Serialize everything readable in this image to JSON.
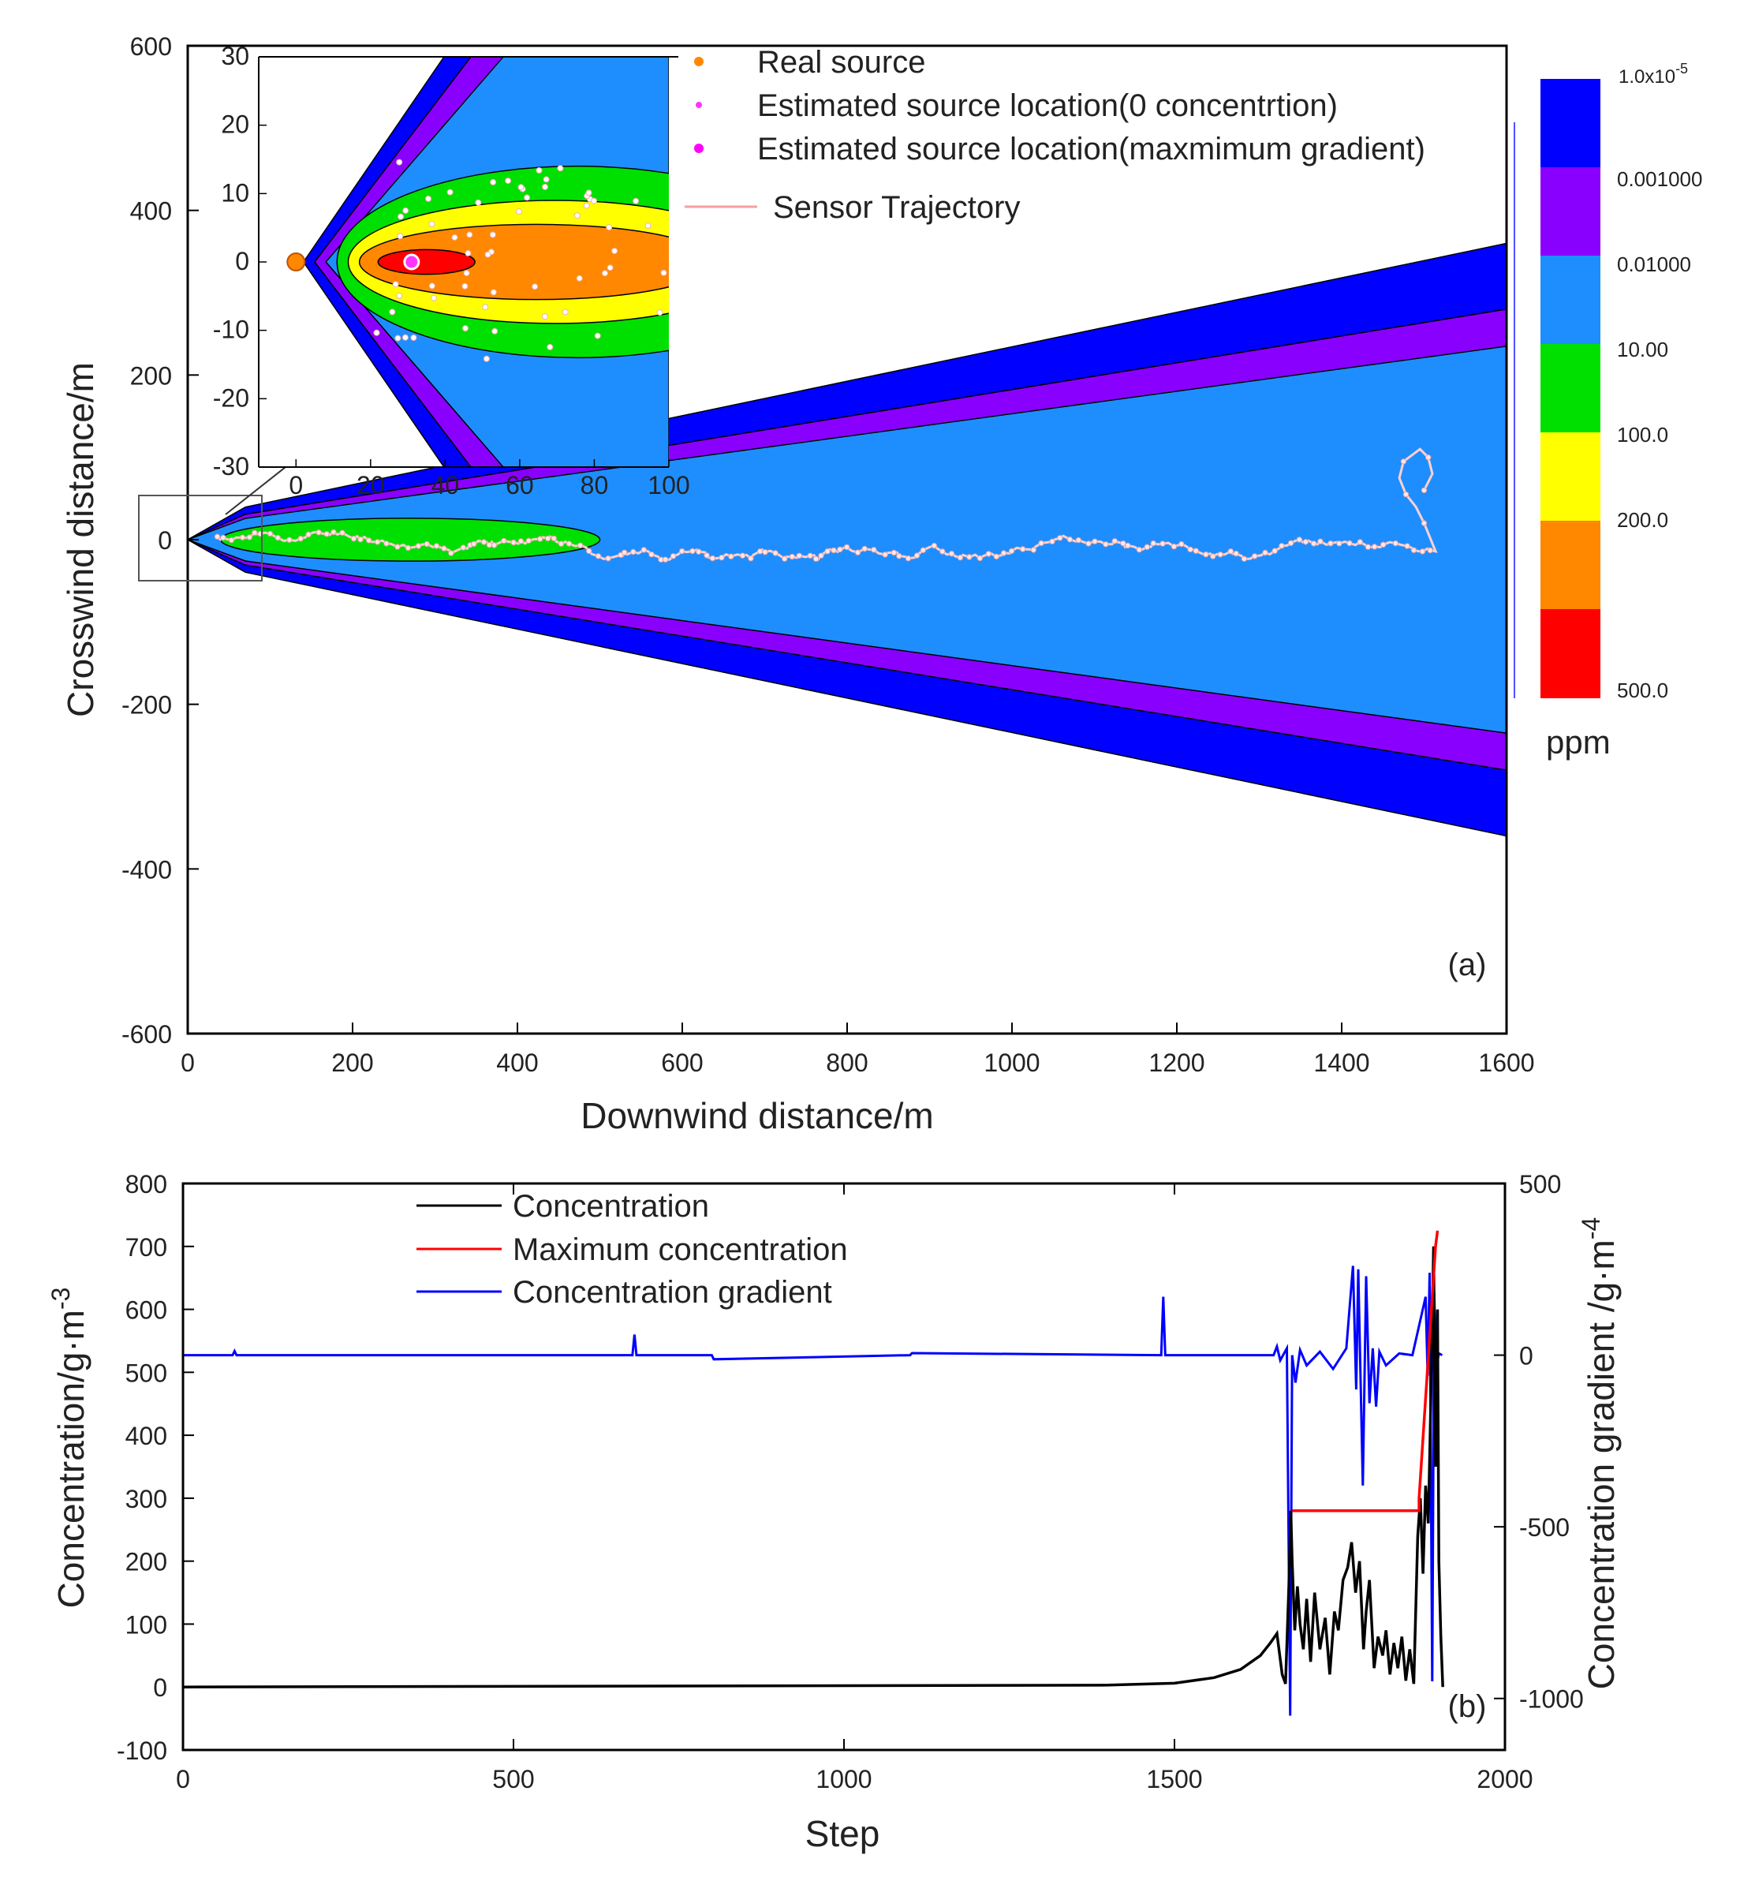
{
  "chart_data": [
    {
      "id": "a",
      "type": "contour",
      "panel_label": "(a)",
      "xlabel": "Downwind distance/m",
      "ylabel": "Crosswind distance/m",
      "xlim": [
        0,
        1600
      ],
      "ylim": [
        -600,
        600
      ],
      "xticks": [
        "0",
        "200",
        "400",
        "600",
        "800",
        "1000",
        "1200",
        "1400",
        "1600"
      ],
      "yticks": [
        "600",
        "400",
        "200",
        "0",
        "-200",
        "-400",
        "-600"
      ],
      "legend": [
        "Real source",
        "Estimated source location(0 concentrtion)",
        "Estimated source location(maxmimum gradient)",
        "Sensor Trajectory"
      ],
      "colorbar": {
        "unit": "ppm",
        "labels": [
          "1.0x10",
          "0.001000",
          "0.01000",
          "10.00",
          "100.0",
          "200.0",
          "500.0"
        ],
        "top_label_exponent": "-5",
        "colors": [
          "#0000ff",
          "#8a00ff",
          "#1e8eff",
          "#00e000",
          "#ffff00",
          "#ff8800",
          "#ff0000"
        ]
      },
      "plume_halfwidth_at_1600": {
        "blue_outer": 360,
        "purple_outer": 280,
        "lightblue_outer": 235
      },
      "green_region_x": [
        40,
        500
      ],
      "trajectory_x_range": [
        30,
        1510
      ],
      "inset": {
        "xlim": [
          -10,
          100
        ],
        "ylim": [
          -30,
          30
        ],
        "xticks": [
          "0",
          "20",
          "40",
          "60",
          "80",
          "100"
        ],
        "yticks": [
          "30",
          "20",
          "10",
          "0",
          "-10",
          "-20",
          "-30"
        ],
        "real_source": [
          0,
          0
        ],
        "estimated_source_max_gradient": [
          31,
          0
        ]
      }
    },
    {
      "id": "b",
      "type": "line",
      "panel_label": "(b)",
      "xlabel": "Step",
      "ylabel": "Concentration/g·m",
      "ylabel_exponent": "-3",
      "y2label": "Concentration gradient /g·m",
      "y2label_exponent": "-4",
      "xlim": [
        0,
        2000
      ],
      "ylim": [
        -100,
        800
      ],
      "y2lim": [
        -1150,
        500
      ],
      "xticks": [
        "0",
        "500",
        "1000",
        "1500",
        "2000"
      ],
      "yticks": [
        "800",
        "700",
        "600",
        "500",
        "400",
        "300",
        "200",
        "100",
        "0",
        "-100"
      ],
      "y2ticks": [
        "500",
        "0",
        "-500",
        "-1000"
      ],
      "series": [
        {
          "name": "Concentration",
          "color": "#000000",
          "x": [
            0,
            1400,
            1500,
            1560,
            1600,
            1630,
            1645,
            1655,
            1663,
            1668,
            1673,
            1676,
            1678,
            1682,
            1686,
            1690,
            1695,
            1700,
            1706,
            1712,
            1720,
            1728,
            1735,
            1742,
            1748,
            1755,
            1762,
            1768,
            1774,
            1780,
            1786,
            1790,
            1795,
            1802,
            1808,
            1815,
            1820,
            1826,
            1832,
            1838,
            1844,
            1850,
            1856,
            1862,
            1868,
            1872,
            1876,
            1880,
            1884,
            1888,
            1892,
            1895,
            1898,
            1900,
            1903,
            1906
          ],
          "y": [
            0,
            3,
            6,
            15,
            28,
            50,
            70,
            85,
            20,
            5,
            160,
            280,
            200,
            90,
            160,
            100,
            60,
            140,
            40,
            150,
            60,
            110,
            20,
            120,
            90,
            170,
            190,
            230,
            150,
            200,
            60,
            120,
            170,
            30,
            80,
            50,
            90,
            20,
            70,
            30,
            80,
            10,
            60,
            5,
            240,
            300,
            180,
            320,
            260,
            460,
            700,
            350,
            600,
            200,
            80,
            0
          ]
        },
        {
          "name": "Maximum concentration",
          "color": "#ff0000",
          "x": [
            1678,
            1870,
            1870,
            1895,
            1898
          ],
          "y": [
            280,
            280,
            300,
            700,
            725
          ]
        },
        {
          "name": "Concentration gradient",
          "color": "#0000ff",
          "x": [
            0,
            75,
            78,
            81,
            680,
            683,
            686,
            800,
            803,
            1100,
            1103,
            1480,
            1483,
            1486,
            1650,
            1655,
            1660,
            1670,
            1675,
            1678,
            1683,
            1690,
            1700,
            1720,
            1740,
            1760,
            1770,
            1775,
            1778,
            1785,
            1790,
            1795,
            1800,
            1805,
            1810,
            1820,
            1840,
            1860,
            1880,
            1883,
            1886,
            1890,
            1893,
            1896,
            1900,
            1905
          ],
          "y": [
            0,
            0,
            12,
            0,
            0,
            60,
            0,
            0,
            -12,
            0,
            6,
            0,
            170,
            0,
            0,
            25,
            -15,
            20,
            -1050,
            0,
            -80,
            15,
            -30,
            10,
            -40,
            20,
            260,
            -100,
            250,
            -380,
            230,
            -140,
            20,
            -150,
            10,
            -30,
            5,
            0,
            170,
            -60,
            240,
            -950,
            180,
            -40,
            5,
            0
          ]
        }
      ]
    }
  ]
}
